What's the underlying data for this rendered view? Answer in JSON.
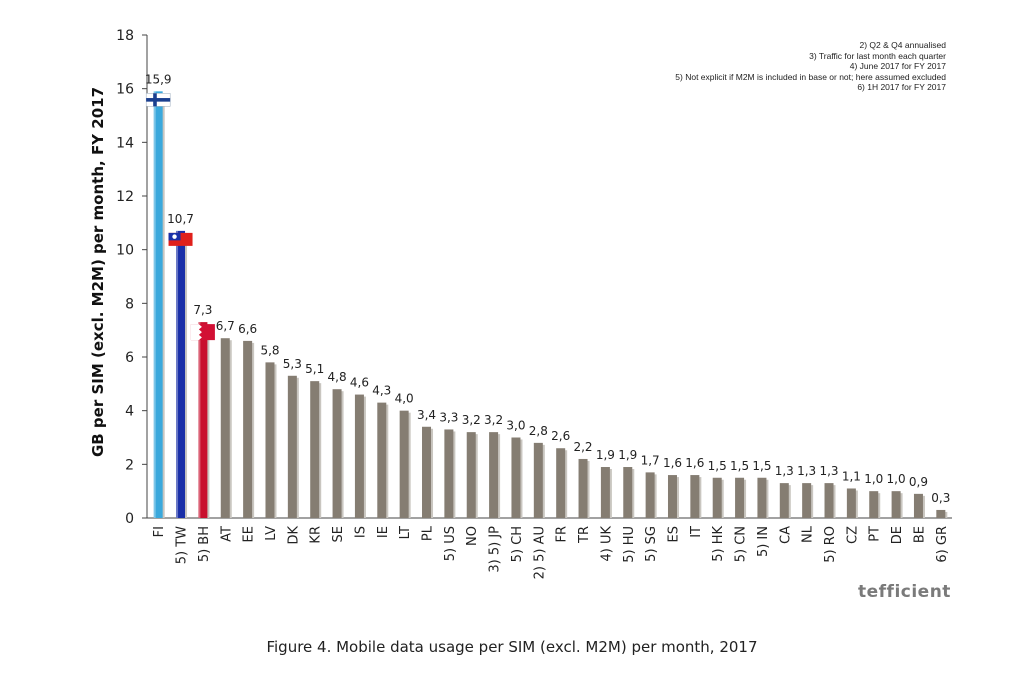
{
  "chart_data": {
    "type": "bar",
    "title": "",
    "ylabel": "GB per SIM (excl. M2M) per month, FY 2017",
    "xlabel": "",
    "ylim": [
      0,
      18
    ],
    "yticks": [
      "0",
      "2",
      "4",
      "6",
      "8",
      "10",
      "12",
      "14",
      "16",
      "18"
    ],
    "grid": false,
    "categories": [
      "FI",
      "5) TW",
      "5) BH",
      "AT",
      "EE",
      "LV",
      "DK",
      "KR",
      "SE",
      "IS",
      "IE",
      "LT",
      "PL",
      "5) US",
      "NO",
      "3) 5) JP",
      "5) CH",
      "2) 5) AU",
      "FR",
      "TR",
      "4) UK",
      "5) HU",
      "5) SG",
      "ES",
      "IT",
      "5) HK",
      "5) CN",
      "5) IN",
      "CA",
      "NL",
      "5) RO",
      "CZ",
      "PT",
      "DE",
      "BE",
      "6) GR"
    ],
    "values": [
      15.9,
      10.7,
      7.3,
      6.7,
      6.6,
      5.8,
      5.3,
      5.1,
      4.8,
      4.6,
      4.3,
      4.0,
      3.4,
      3.3,
      3.2,
      3.2,
      3.0,
      2.8,
      2.6,
      2.2,
      1.9,
      1.9,
      1.7,
      1.6,
      1.6,
      1.5,
      1.5,
      1.5,
      1.3,
      1.3,
      1.3,
      1.1,
      1.0,
      1.0,
      0.9,
      0.3
    ],
    "value_labels": [
      "15,9",
      "10,7",
      "7,3",
      "6,7",
      "6,6",
      "5,8",
      "5,3",
      "5,1",
      "4,8",
      "4,6",
      "4,3",
      "4,0",
      "3,4",
      "3,3",
      "3,2",
      "3,2",
      "3,0",
      "2,8",
      "2,6",
      "2,2",
      "1,9",
      "1,9",
      "1,7",
      "1,6",
      "1,6",
      "1,5",
      "1,5",
      "1,5",
      "1,3",
      "1,3",
      "1,3",
      "1,1",
      "1,0",
      "1,0",
      "0,9",
      "0,3"
    ],
    "bar_colors": [
      "#3aa8dc",
      "#1a2fa8",
      "#c8102e",
      "#857d72",
      "#857d72",
      "#857d72",
      "#857d72",
      "#857d72",
      "#857d72",
      "#857d72",
      "#857d72",
      "#857d72",
      "#857d72",
      "#857d72",
      "#857d72",
      "#857d72",
      "#857d72",
      "#857d72",
      "#857d72",
      "#857d72",
      "#857d72",
      "#857d72",
      "#857d72",
      "#857d72",
      "#857d72",
      "#857d72",
      "#857d72",
      "#857d72",
      "#857d72",
      "#857d72",
      "#857d72",
      "#857d72",
      "#857d72",
      "#857d72",
      "#857d72",
      "#857d72"
    ],
    "flags": [
      {
        "index": 0,
        "name": "finland-flag-icon",
        "bg": "#ffffff",
        "cross": "#1a3f8f"
      },
      {
        "index": 1,
        "name": "taiwan-flag-icon",
        "bg": "#e0201b",
        "canton": "#1a2fa8"
      },
      {
        "index": 2,
        "name": "bahrain-flag-icon",
        "bg": "#d21034",
        "hoist": "#ffffff"
      }
    ]
  },
  "notes": [
    "2) Q2 & Q4 annualised",
    "3) Traffic for last month each quarter",
    "4) June 2017 for FY 2017",
    "5) Not explicit if M2M is included in base or not; here assumed excluded",
    "6) 1H 2017 for FY 2017"
  ],
  "logo_text": "tefficient",
  "caption": "Figure 4. Mobile data usage per SIM (excl. M2M) per month, 2017"
}
